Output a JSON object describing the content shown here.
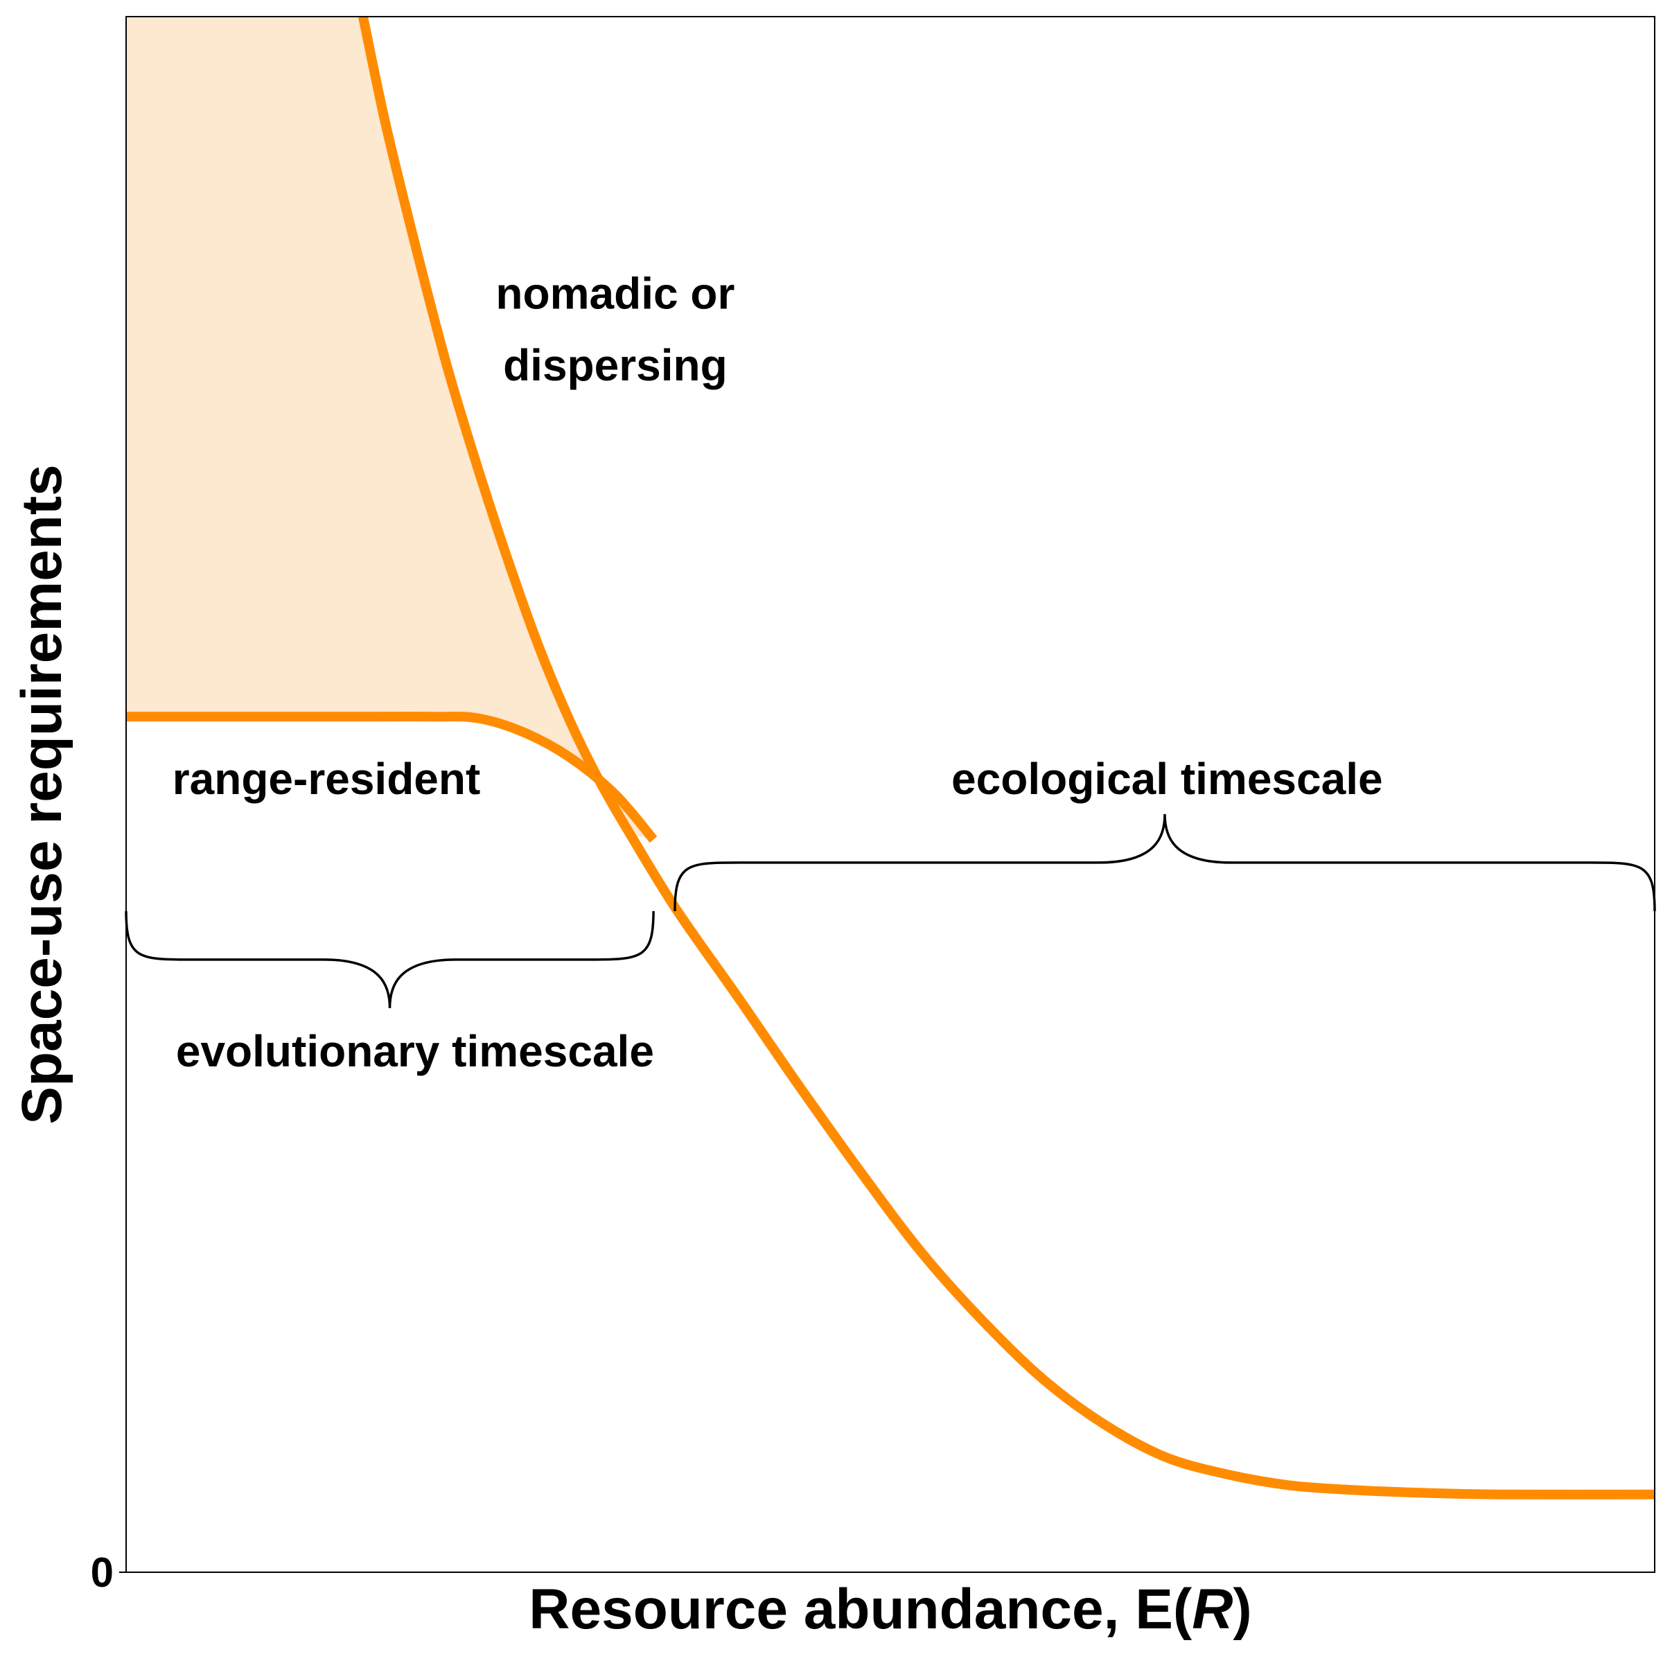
{
  "chart_data": {
    "type": "line",
    "xlabel_prefix": "Resource abundance, E(",
    "xlabel_var": "R",
    "xlabel_suffix": ")",
    "ylabel": "Space-use requirements",
    "xlim": [
      0,
      1
    ],
    "ylim": [
      0,
      1
    ],
    "y_ticks": [
      {
        "value": 0,
        "label": "0"
      }
    ],
    "grid": false,
    "colors": {
      "curve": "#FF8C00",
      "fill": "#FDE8D0",
      "brace": "#000000",
      "axis": "#000000",
      "tick_label": "#4D4D4D"
    },
    "series": [
      {
        "role": "range-resident-curve",
        "points": [
          [
            0,
            0.55
          ],
          [
            0.05,
            0.55
          ],
          [
            0.1,
            0.55
          ],
          [
            0.15,
            0.55
          ],
          [
            0.2,
            0.55
          ],
          [
            0.23,
            0.549
          ],
          [
            0.26,
            0.54
          ],
          [
            0.29,
            0.524
          ],
          [
            0.32,
            0.5
          ],
          [
            0.345,
            0.471
          ]
        ]
      },
      {
        "role": "main-curve",
        "points": [
          [
            0.155,
            1.0
          ],
          [
            0.17,
            0.93
          ],
          [
            0.19,
            0.85
          ],
          [
            0.21,
            0.775
          ],
          [
            0.23,
            0.71
          ],
          [
            0.25,
            0.65
          ],
          [
            0.27,
            0.595
          ],
          [
            0.29,
            0.548
          ],
          [
            0.31,
            0.508
          ],
          [
            0.33,
            0.474
          ],
          [
            0.36,
            0.426
          ],
          [
            0.4,
            0.37
          ],
          [
            0.44,
            0.313
          ],
          [
            0.48,
            0.258
          ],
          [
            0.52,
            0.206
          ],
          [
            0.56,
            0.162
          ],
          [
            0.6,
            0.124
          ],
          [
            0.64,
            0.095
          ],
          [
            0.68,
            0.074
          ],
          [
            0.72,
            0.063
          ],
          [
            0.76,
            0.056
          ],
          [
            0.8,
            0.053
          ],
          [
            0.85,
            0.051
          ],
          [
            0.9,
            0.05
          ],
          [
            1.0,
            0.05
          ]
        ]
      }
    ],
    "shaded_region": {
      "description_source": "between range-resident curve and main curve",
      "points": [
        [
          0,
          1.0
        ],
        [
          0.155,
          1.0
        ],
        [
          0.17,
          0.93
        ],
        [
          0.19,
          0.85
        ],
        [
          0.21,
          0.775
        ],
        [
          0.23,
          0.71
        ],
        [
          0.25,
          0.65
        ],
        [
          0.27,
          0.595
        ],
        [
          0.29,
          0.548
        ],
        [
          0.31,
          0.508
        ],
        [
          0.33,
          0.474
        ],
        [
          0.345,
          0.471
        ],
        [
          0.32,
          0.5
        ],
        [
          0.29,
          0.524
        ],
        [
          0.26,
          0.54
        ],
        [
          0.23,
          0.549
        ],
        [
          0.2,
          0.55
        ],
        [
          0.1,
          0.55
        ],
        [
          0,
          0.55
        ]
      ]
    },
    "annotations": [
      {
        "key": "nomadic_line1",
        "text": "nomadic or",
        "x": 0.32,
        "y": 0.822
      },
      {
        "key": "nomadic_line2",
        "text": "dispersing",
        "x": 0.32,
        "y": 0.776
      },
      {
        "key": "range_resident",
        "text": "range-resident",
        "x": 0.131,
        "y": 0.51
      },
      {
        "key": "ecological",
        "text": "ecological timescale",
        "x": 0.681,
        "y": 0.51
      },
      {
        "key": "evolutionary",
        "text": "evolutionary timescale",
        "x": 0.189,
        "y": 0.335
      }
    ],
    "braces": [
      {
        "key": "evolutionary-brace",
        "x_start": 0.0,
        "x_end": 0.345,
        "y": 0.425,
        "direction": "down"
      },
      {
        "key": "ecological-brace",
        "x_start": 0.359,
        "x_end": 1.0,
        "y": 0.425,
        "direction": "up"
      }
    ]
  }
}
